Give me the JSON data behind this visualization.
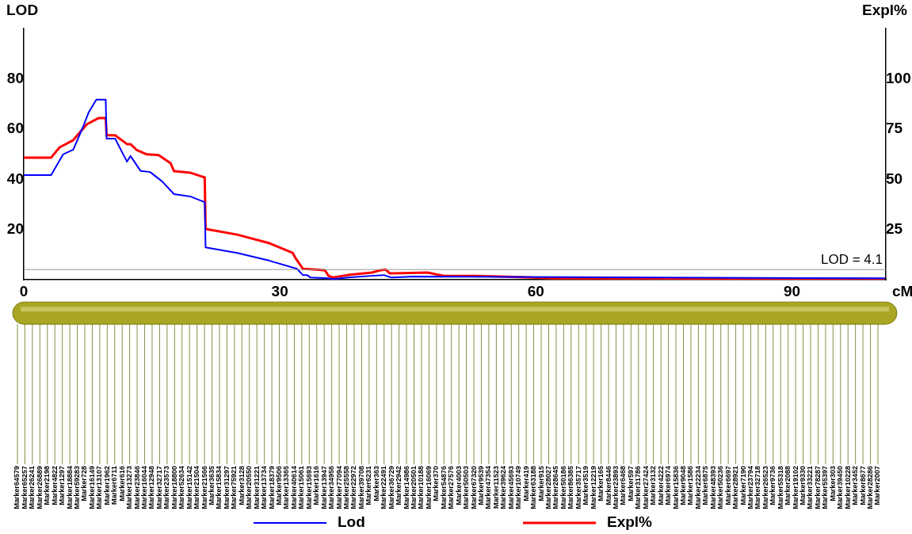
{
  "chart_data": {
    "type": "line",
    "ylabel": "LOD",
    "y2label": "Expl%",
    "xlabel": "cM",
    "xlim": [
      0,
      101
    ],
    "xticks": [
      0,
      30,
      60,
      90
    ],
    "ylim": [
      0,
      100
    ],
    "yticks": [
      20,
      40,
      60,
      80
    ],
    "y2lim": [
      0,
      125
    ],
    "y2ticks": [
      25,
      50,
      75,
      100
    ],
    "grid": false,
    "legend": "bottom",
    "marker": "none",
    "line_style": "solid",
    "ref_lines": [
      {
        "axis": "y",
        "value": 4.1,
        "label": "LOD = 4.1",
        "color": "#999999"
      }
    ],
    "series": [
      {
        "name": "Lod",
        "color": "#0000ff",
        "x": [
          0,
          3.2,
          4.6,
          5.8,
          7,
          7.6,
          8.5,
          8.8,
          9.6,
          9.7,
          10.7,
          12.1,
          12.5,
          13.7,
          14.8,
          16.2,
          17.6,
          19.5,
          21.2,
          21.3,
          25,
          28.8,
          32,
          32.7,
          33.2,
          33.6,
          35.7,
          36.2,
          38,
          40.8,
          42.2,
          42.7,
          43.1,
          45.5,
          100.9
        ],
        "values": [
          41.7,
          41.7,
          49.9,
          51.8,
          61.3,
          66.6,
          71.7,
          71.7,
          71.7,
          56.2,
          56.2,
          47,
          49.3,
          43.3,
          42.9,
          39.2,
          34.1,
          33.2,
          30.9,
          12.9,
          10.7,
          7.6,
          4.4,
          1.9,
          1.9,
          0.9,
          0.6,
          0.3,
          0.9,
          1.6,
          1.9,
          1.3,
          0.9,
          1.3,
          0.6
        ]
      },
      {
        "name": "Expl%",
        "color": "#ff0000",
        "axis": "y2",
        "x": [
          0,
          3.2,
          4.2,
          5.8,
          7.4,
          8.8,
          9.6,
          9.7,
          10.7,
          12.1,
          12.5,
          13.2,
          14.4,
          15.8,
          17.2,
          17.6,
          19.5,
          21.2,
          21.3,
          25,
          28.8,
          31.5,
          31.8,
          32.7,
          34.3,
          35.3,
          35.7,
          36.2,
          38,
          40.8,
          41.7,
          42.4,
          42.9,
          47.3,
          49.2,
          52.9,
          56.6,
          62.2,
          100.9
        ],
        "values": [
          60.8,
          60.8,
          65.9,
          69.5,
          77.4,
          80.5,
          80.5,
          71.9,
          71.9,
          67.5,
          67.5,
          64.7,
          62.4,
          62,
          58,
          54.1,
          53.3,
          50.9,
          25.3,
          22.5,
          18.2,
          13.4,
          11.1,
          5.5,
          5.1,
          4.7,
          2,
          1.2,
          2.4,
          3.6,
          4.7,
          5.1,
          3.2,
          3.6,
          2,
          2,
          1.6,
          0.8,
          0.4
        ]
      }
    ],
    "annotations": [
      "Marker64579",
      "Marker65257",
      "Marker26241",
      "Marker26889",
      "Marker2198",
      "Marker4822",
      "Marker1297",
      "Marker18884",
      "Marker59283",
      "Marker728",
      "Marker16149",
      "Marker13107",
      "Marker1962",
      "Marker6711",
      "Marker616",
      "Marker13273",
      "Marker23846",
      "Marker16044",
      "Marker12948",
      "Marker32717",
      "Marker23573",
      "Marker18800",
      "Marker52634",
      "Marker15142",
      "Marker21504",
      "Marker21566",
      "Marker3635",
      "Marker15834",
      "Marker31297",
      "Marker75921",
      "Marker3128",
      "Marker20550",
      "Marker31221",
      "Marker13734",
      "Marker18379",
      "Marker9506",
      "Marker13365",
      "Marker40614",
      "Marker15061",
      "Marker15693",
      "Marker1616",
      "Marker13947",
      "Marker34956",
      "Marker77094",
      "Marker25558",
      "Marker22972",
      "Marker39708",
      "Marker6231",
      "Marker363",
      "Marker22491",
      "Marker36729",
      "Marker2942",
      "Marker14986",
      "Marker20501",
      "Marker10188",
      "Marker16069",
      "Marker370",
      "Marker54876",
      "Marker27576",
      "Marker4003",
      "Marker50503",
      "Marker67320",
      "Marker9539",
      "Marker47354",
      "Marker11523",
      "Marker39624",
      "Marker45693",
      "Marker10749",
      "Marker419",
      "Marker63188",
      "Marker915",
      "Marker28027",
      "Marker28645",
      "Marker50186",
      "Marker86385",
      "Marker35717",
      "Marker3519",
      "Marker12219",
      "Marker165",
      "Marker8446",
      "Marker23893",
      "Marker6468",
      "Marker597",
      "Marker31786",
      "Marker27424",
      "Marker3132",
      "Marker4222",
      "Marker6974",
      "Marker15836",
      "Marker9048",
      "Marker1586",
      "Marker22234",
      "Marker6875",
      "Marker48393",
      "Marker50236",
      "Marker6697",
      "Marker28921",
      "Marker7190",
      "Marker23794",
      "Marker32718",
      "Marker26523",
      "Marker9736",
      "Marker55318",
      "Marker2088",
      "Marker19102",
      "Marker9330",
      "Marker33221",
      "Marker78287",
      "Marker55397",
      "Marker303",
      "Marker39450",
      "Marker10228",
      "Marker3452",
      "Marker8677",
      "Marker28286",
      "Marker2007"
    ]
  }
}
